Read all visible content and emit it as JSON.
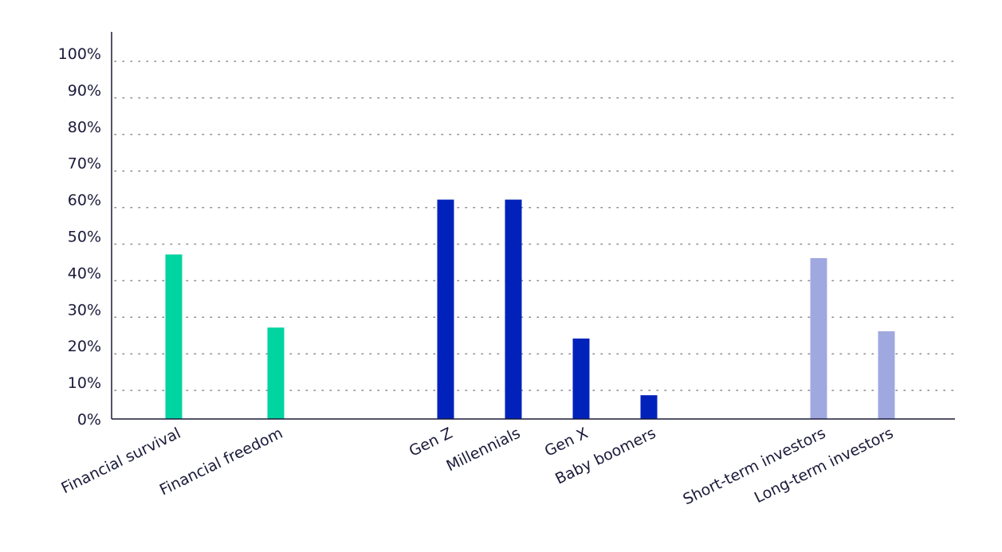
{
  "chart_data": {
    "type": "bar",
    "title": "",
    "xlabel": "",
    "ylabel": "",
    "ylim": [
      0,
      100
    ],
    "y_ticks": [
      "0%",
      "10%",
      "20%",
      "30%",
      "40%",
      "50%",
      "60%",
      "70%",
      "80%",
      "90%",
      "100%"
    ],
    "grid": true,
    "legend": false,
    "categories": [
      "Financial survival",
      "Financial freedom",
      "Gen Z",
      "Millennials",
      "Gen X",
      "Baby boomers",
      "Short-term investors",
      "Long-term investors"
    ],
    "values": [
      45,
      25,
      60,
      60,
      22,
      6.5,
      44,
      24
    ],
    "groups": [
      {
        "categories": [
          "Financial survival",
          "Financial freedom"
        ],
        "color": "#00d4a1"
      },
      {
        "categories": [
          "Gen Z",
          "Millennials",
          "Gen X",
          "Baby boomers"
        ],
        "color": "#0022bb"
      },
      {
        "categories": [
          "Short-term investors",
          "Long-term investors"
        ],
        "color": "#a0a8e0"
      }
    ]
  }
}
